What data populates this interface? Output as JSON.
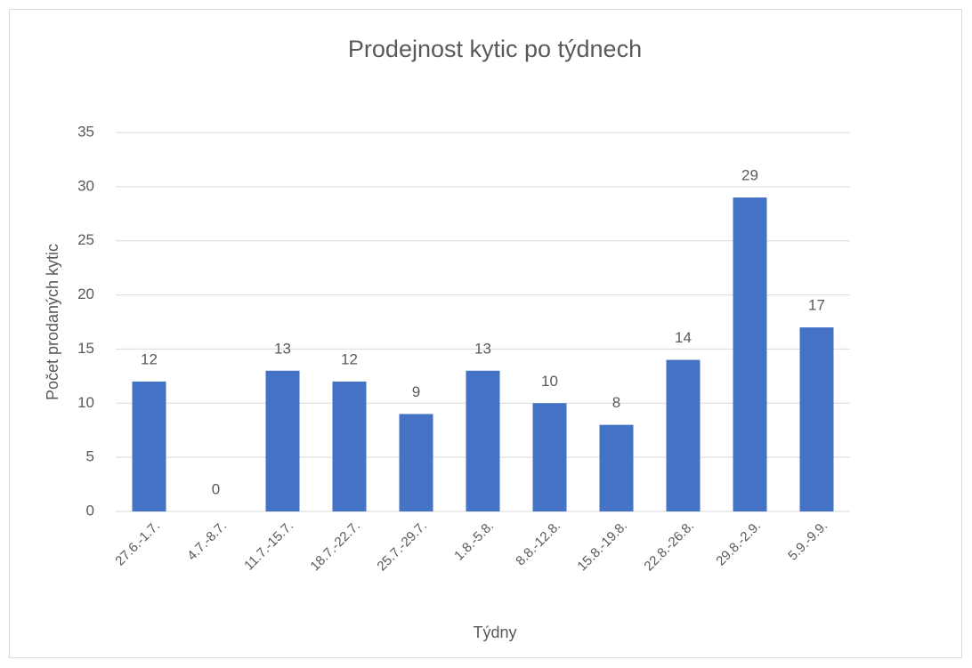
{
  "chart_data": {
    "type": "bar",
    "title": "Prodejnost kytic po týdnech",
    "x_label": "Týdny",
    "y_label": "Počet prodaných kytic",
    "categories": [
      "27.6.-1.7.",
      "4.7.-8.7.",
      "11.7.-15.7.",
      "18.7.-22.7.",
      "25.7.-29.7.",
      "1.8.-5.8.",
      "8.8.-12.8.",
      "15.8.-19.8.",
      "22.8.-26.8.",
      "29.8.-2.9.",
      "5.9.-9.9."
    ],
    "values": [
      12,
      0,
      13,
      12,
      9,
      13,
      10,
      8,
      14,
      29,
      17
    ],
    "color": "#4472c4",
    "ylim": [
      0,
      35
    ],
    "yticks": [
      0,
      5,
      10,
      15,
      20,
      25,
      30,
      35
    ],
    "grid": true
  }
}
